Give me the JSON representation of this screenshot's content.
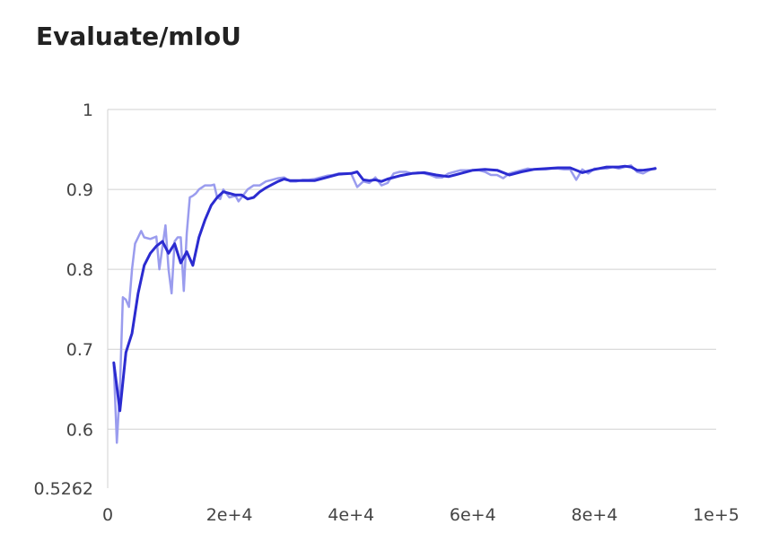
{
  "title": "Evaluate/mIoU",
  "colors": {
    "raw_series": "#9a9cee",
    "smoothed_series": "#2b2bd0",
    "grid": "#d0d0d0",
    "text": "#444444"
  },
  "chart_data": {
    "type": "line",
    "title": "Evaluate/mIoU",
    "xlabel": "",
    "ylabel": "",
    "xlim": [
      0,
      100000
    ],
    "ylim": [
      0.5262,
      1.0
    ],
    "grid": true,
    "legend": "none",
    "x_ticks": [
      {
        "value": 0,
        "label": "0"
      },
      {
        "value": 20000,
        "label": "2e+4"
      },
      {
        "value": 40000,
        "label": "4e+4"
      },
      {
        "value": 60000,
        "label": "6e+4"
      },
      {
        "value": 80000,
        "label": "8e+4"
      },
      {
        "value": 100000,
        "label": "1e+5"
      }
    ],
    "y_ticks": [
      {
        "value": 0.5262,
        "label": "0.5262"
      },
      {
        "value": 0.6,
        "label": "0.6"
      },
      {
        "value": 0.7,
        "label": "0.7"
      },
      {
        "value": 0.8,
        "label": "0.8"
      },
      {
        "value": 0.9,
        "label": "0.9"
      },
      {
        "value": 1.0,
        "label": "1"
      }
    ],
    "series": [
      {
        "role": "raw",
        "x": [
          1000,
          1500,
          2000,
          2500,
          3000,
          3500,
          4000,
          4500,
          5000,
          5500,
          6000,
          7000,
          8000,
          8500,
          9000,
          9500,
          10000,
          10500,
          11000,
          11500,
          12000,
          12500,
          13000,
          13500,
          14000,
          14500,
          15000,
          16000,
          17000,
          17500,
          18000,
          18500,
          19000,
          19500,
          20000,
          21000,
          21500,
          22000,
          23000,
          24000,
          25000,
          26000,
          27000,
          28000,
          29000,
          30000,
          31000,
          32000,
          33000,
          34000,
          35000,
          36000,
          37000,
          38000,
          39000,
          40000,
          41000,
          42000,
          43000,
          44000,
          45000,
          46000,
          47000,
          48000,
          49000,
          50000,
          51000,
          52000,
          53000,
          54000,
          55000,
          56000,
          57000,
          58000,
          59000,
          60000,
          61000,
          62000,
          63000,
          64000,
          65000,
          66000,
          67000,
          68000,
          69000,
          70000,
          71000,
          72000,
          73000,
          74000,
          75000,
          76000,
          77000,
          78000,
          79000,
          80000,
          81000,
          82000,
          83000,
          84000,
          85000,
          86000,
          87000,
          88000,
          89000,
          90000
        ],
        "y": [
          0.68,
          0.583,
          0.65,
          0.765,
          0.762,
          0.753,
          0.8,
          0.832,
          0.84,
          0.848,
          0.84,
          0.838,
          0.841,
          0.8,
          0.828,
          0.855,
          0.8,
          0.77,
          0.835,
          0.84,
          0.84,
          0.773,
          0.845,
          0.89,
          0.892,
          0.895,
          0.9,
          0.905,
          0.905,
          0.906,
          0.89,
          0.888,
          0.9,
          0.895,
          0.89,
          0.892,
          0.885,
          0.89,
          0.9,
          0.905,
          0.905,
          0.91,
          0.912,
          0.914,
          0.915,
          0.91,
          0.91,
          0.912,
          0.912,
          0.913,
          0.915,
          0.917,
          0.918,
          0.92,
          0.92,
          0.92,
          0.903,
          0.91,
          0.908,
          0.915,
          0.905,
          0.908,
          0.92,
          0.922,
          0.922,
          0.92,
          0.921,
          0.92,
          0.918,
          0.915,
          0.915,
          0.92,
          0.922,
          0.924,
          0.924,
          0.924,
          0.924,
          0.922,
          0.918,
          0.918,
          0.914,
          0.92,
          0.922,
          0.924,
          0.926,
          0.925,
          0.925,
          0.925,
          0.926,
          0.926,
          0.925,
          0.925,
          0.912,
          0.925,
          0.92,
          0.926,
          0.926,
          0.926,
          0.928,
          0.926,
          0.928,
          0.93,
          0.922,
          0.92,
          0.924,
          0.927
        ]
      },
      {
        "role": "smoothed",
        "x": [
          1000,
          2000,
          3000,
          4000,
          5000,
          6000,
          7000,
          8000,
          9000,
          10000,
          11000,
          12000,
          13000,
          14000,
          15000,
          16000,
          17000,
          18000,
          19000,
          20000,
          21000,
          22000,
          23000,
          24000,
          25000,
          26000,
          27000,
          28000,
          29000,
          30000,
          32000,
          34000,
          36000,
          38000,
          40000,
          41000,
          42000,
          43000,
          44000,
          45000,
          46000,
          48000,
          50000,
          52000,
          54000,
          56000,
          58000,
          60000,
          62000,
          64000,
          66000,
          68000,
          70000,
          72000,
          74000,
          76000,
          78000,
          80000,
          82000,
          84000,
          85000,
          86000,
          87000,
          88000,
          89000,
          90000
        ],
        "y": [
          0.683,
          0.623,
          0.696,
          0.72,
          0.77,
          0.805,
          0.82,
          0.829,
          0.835,
          0.82,
          0.832,
          0.808,
          0.822,
          0.805,
          0.84,
          0.862,
          0.88,
          0.89,
          0.897,
          0.895,
          0.893,
          0.893,
          0.888,
          0.89,
          0.897,
          0.902,
          0.906,
          0.91,
          0.913,
          0.911,
          0.911,
          0.911,
          0.915,
          0.919,
          0.92,
          0.922,
          0.912,
          0.911,
          0.912,
          0.91,
          0.913,
          0.917,
          0.92,
          0.921,
          0.918,
          0.916,
          0.92,
          0.924,
          0.925,
          0.924,
          0.918,
          0.922,
          0.925,
          0.926,
          0.927,
          0.927,
          0.921,
          0.925,
          0.928,
          0.928,
          0.929,
          0.928,
          0.924,
          0.924,
          0.925,
          0.926
        ]
      }
    ]
  }
}
